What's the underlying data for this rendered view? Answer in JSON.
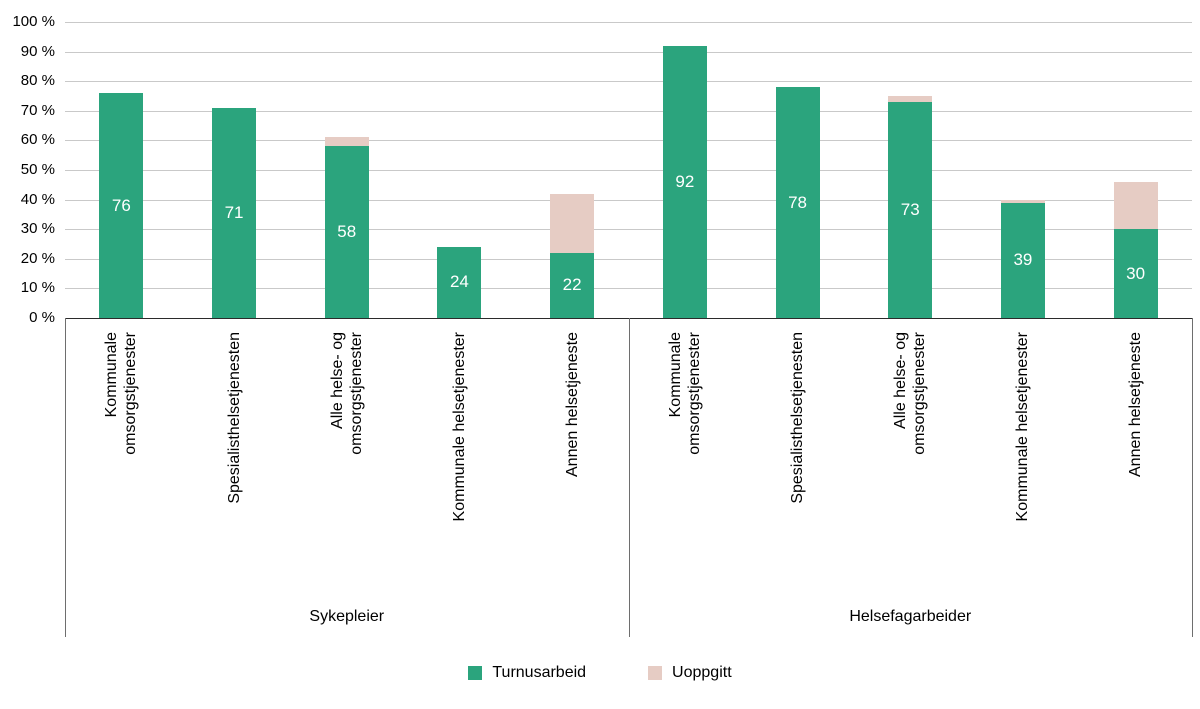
{
  "chart_data": {
    "type": "bar",
    "stacked": true,
    "title": "",
    "grid": true,
    "legend_position": "bottom",
    "ylim": [
      0,
      100
    ],
    "y_ticks": [
      "0 %",
      "10 %",
      "20 %",
      "30 %",
      "40 %",
      "50 %",
      "60 %",
      "70 %",
      "80 %",
      "90 %",
      "100 %"
    ],
    "groups": [
      "Sykepleier",
      "Helsefagarbeider"
    ],
    "categories": [
      {
        "group": "Sykepleier",
        "label": "Kommunale omsorgstjenester",
        "lines": [
          "Kommunale",
          "omsorgstjenester"
        ]
      },
      {
        "group": "Sykepleier",
        "label": "Spesialisthelsetjenesten",
        "lines": [
          "Spesialisthelsetjenesten"
        ]
      },
      {
        "group": "Sykepleier",
        "label": "Alle helse- og omsorgstjenester",
        "lines": [
          "Alle helse- og",
          "omsorgstjenester"
        ]
      },
      {
        "group": "Sykepleier",
        "label": "Kommunale helsetjenester",
        "lines": [
          "Kommunale helsetjenester"
        ]
      },
      {
        "group": "Sykepleier",
        "label": "Annen helsetjeneste",
        "lines": [
          "Annen helsetjeneste"
        ]
      },
      {
        "group": "Helsefagarbeider",
        "label": "Kommunale omsorgstjenester",
        "lines": [
          "Kommunale",
          "omsorgstjenester"
        ]
      },
      {
        "group": "Helsefagarbeider",
        "label": "Spesialisthelsetjenesten",
        "lines": [
          "Spesialisthelsetjenesten"
        ]
      },
      {
        "group": "Helsefagarbeider",
        "label": "Alle helse- og omsorgstjenester",
        "lines": [
          "Alle helse- og",
          "omsorgstjenester"
        ]
      },
      {
        "group": "Helsefagarbeider",
        "label": "Kommunale helsetjenester",
        "lines": [
          "Kommunale helsetjenester"
        ]
      },
      {
        "group": "Helsefagarbeider",
        "label": "Annen helsetjeneste",
        "lines": [
          "Annen helsetjeneste"
        ]
      }
    ],
    "series": [
      {
        "name": "Turnusarbeid",
        "color": "#2BA47D",
        "values": [
          76,
          71,
          58,
          24,
          22,
          92,
          78,
          73,
          39,
          30
        ],
        "value_labels_shown": true
      },
      {
        "name": "Uoppgitt",
        "color": "#E6CCC4",
        "values": [
          0,
          0,
          3,
          0,
          20,
          0,
          0,
          2,
          1,
          16
        ],
        "value_labels_shown": false
      }
    ]
  }
}
